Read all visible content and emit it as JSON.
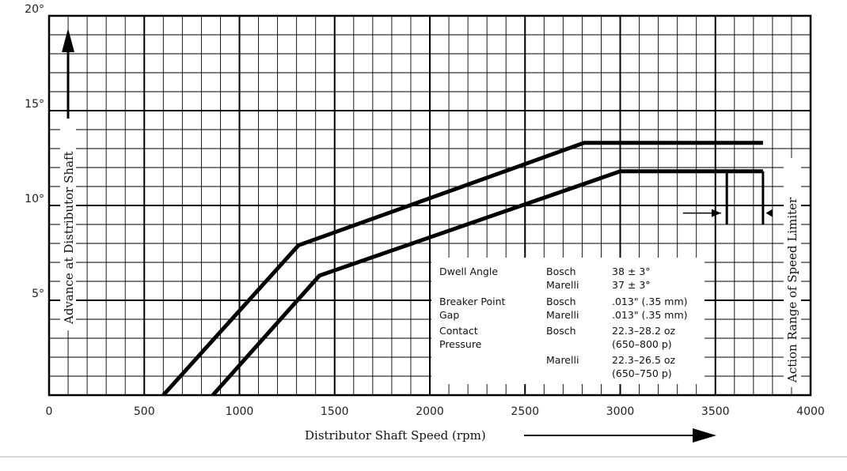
{
  "chart_data": {
    "type": "line",
    "title": "",
    "xlabel": "Distributor Shaft Speed (rpm)",
    "ylabel": "Advance at Distributor Shaft",
    "right_label": "Action Range of Speed Limiter",
    "xlim": [
      0,
      4000
    ],
    "ylim": [
      0,
      20
    ],
    "x_ticks": [
      "0",
      "500",
      "1000",
      "1500",
      "2000",
      "2500",
      "3000",
      "3500",
      "4000"
    ],
    "y_ticks": [
      "5°",
      "10°",
      "15°",
      "20°"
    ],
    "grid": true,
    "series": [
      {
        "points": [
          [
            600,
            0
          ],
          [
            1310,
            7.9
          ],
          [
            2810,
            13.3
          ],
          [
            3750,
            13.3
          ]
        ]
      },
      {
        "points": [
          [
            860,
            0
          ],
          [
            1420,
            6.3
          ],
          [
            3000,
            11.8
          ],
          [
            3750,
            11.8
          ]
        ]
      }
    ],
    "limiter_marks": [
      3560,
      3750
    ],
    "specs": {
      "dwell_angle_label": "Dwell Angle",
      "breaker_gap_label_1": "Breaker Point",
      "breaker_gap_label_2": "Gap",
      "contact_pressure_label_1": "Contact",
      "contact_pressure_label_2": "Pressure",
      "rows": [
        {
          "maker": "Bosch",
          "value": "38 ± 3°"
        },
        {
          "maker": "Marelli",
          "value": "37 ± 3°"
        },
        {
          "maker": "Bosch",
          "value": ".013\" (.35 mm)"
        },
        {
          "maker": "Marelli",
          "value": ".013\" (.35 mm)"
        },
        {
          "maker": "Bosch",
          "value": "22.3–28.2 oz"
        },
        {
          "maker": "",
          "value": "(650–800 p)"
        },
        {
          "maker": "Marelli",
          "value": "22.3–26.5 oz"
        },
        {
          "maker": "",
          "value": "(650–750 p)"
        }
      ]
    }
  }
}
